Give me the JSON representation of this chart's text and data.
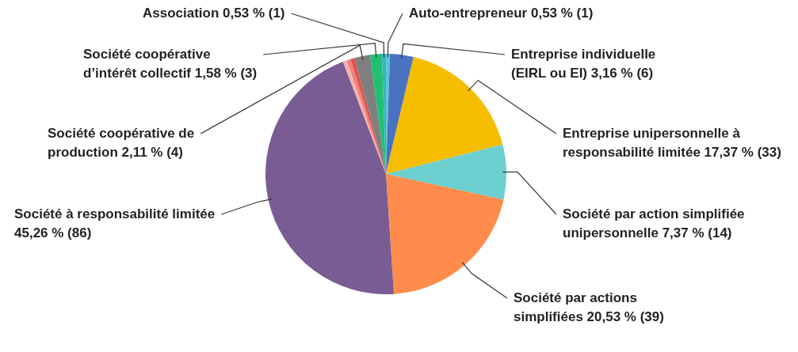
{
  "chart_data": {
    "type": "pie",
    "categories": [
      "Auto-entrepreneur",
      "Entreprise individuelle (EIRL ou EI)",
      "Entreprise unipersonnelle à responsabilité limitée",
      "Société par action simplifiée unipersonnelle",
      "Société par actions simplifiées",
      "Société à responsabilité limitée",
      null,
      null,
      null,
      "Société coopérative de production",
      "Société coopérative d’intérêt collectif",
      "Association"
    ],
    "values": [
      0.53,
      3.16,
      17.37,
      7.37,
      20.53,
      45.26,
      0.53,
      0.53,
      0.53,
      2.11,
      1.58,
      0.53
    ],
    "value_labels": [
      "0,53 % (1)",
      "3,16 % (6)",
      "17,37 % (33)",
      "7,37 % (14)",
      "20,53 % (39)",
      "45,26 % (86)",
      null,
      null,
      null,
      "2,11 % (4)",
      "1,58 % (3)",
      "0,53 % (1)"
    ],
    "colors": [
      "#5bc8d0",
      "#4a72c0",
      "#f5bd00",
      "#6ccfd0",
      "#ff8c4c",
      "#7a5c94",
      "#f4b2a8",
      "#f08080",
      "#e0524a",
      "#7f7f7f",
      "#20c070",
      "#3ab0c8"
    ]
  }
}
